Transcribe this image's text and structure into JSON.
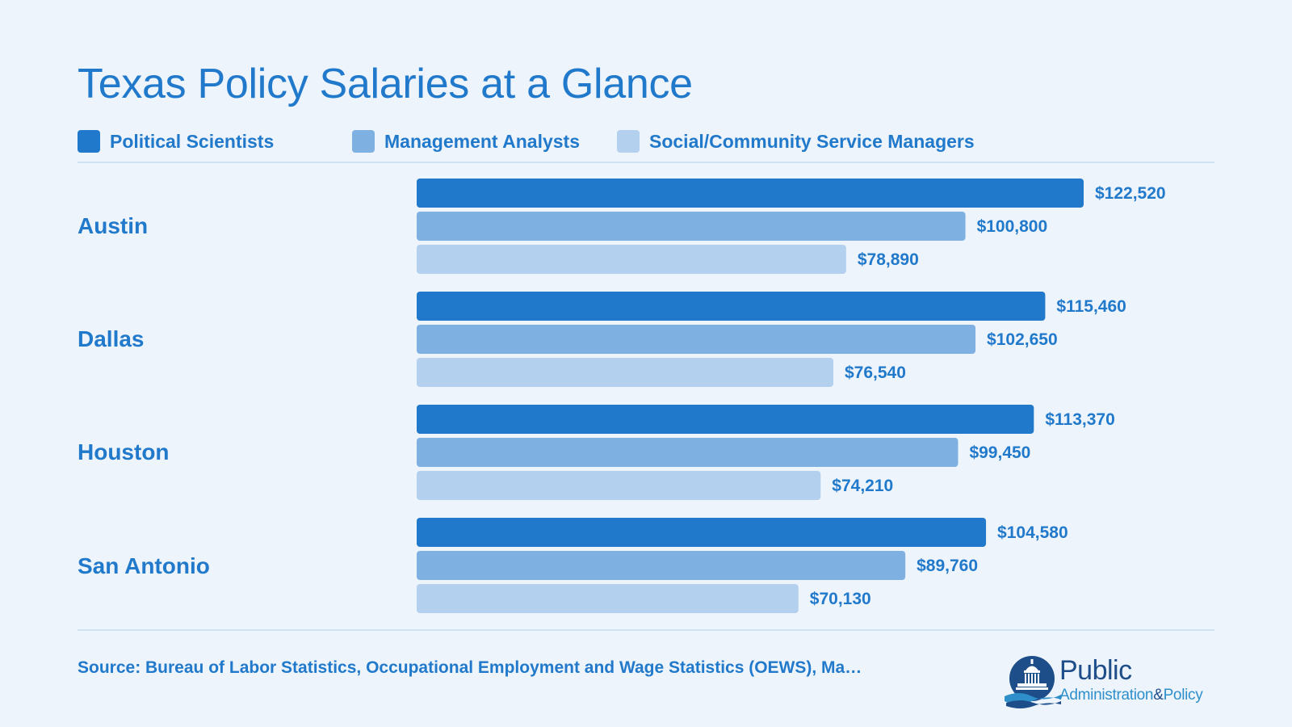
{
  "title": "Texas Policy Salaries at a Glance",
  "legend": [
    {
      "label": "Political Scientists",
      "color": "#2179cb"
    },
    {
      "label": "Management Analysts",
      "color": "#7eb0e2"
    },
    {
      "label": "Social/Community Service Managers",
      "color": "#b3d1ef"
    }
  ],
  "chart_data": {
    "type": "bar",
    "orientation": "horizontal",
    "title": "Texas Policy Salaries at a Glance",
    "categories": [
      "Austin",
      "Dallas",
      "Houston",
      "San Antonio"
    ],
    "series": [
      {
        "name": "Political Scientists",
        "values": [
          122520,
          115460,
          113370,
          104580
        ],
        "labels": [
          "$122,520",
          "$115,460",
          "$113,370",
          "$104,580"
        ],
        "color": "#2179cb"
      },
      {
        "name": "Management Analysts",
        "values": [
          100800,
          102650,
          99450,
          89760
        ],
        "labels": [
          "$100,800",
          "$102,650",
          "$99,450",
          "$89,760"
        ],
        "color": "#7eb0e2"
      },
      {
        "name": "Social/Community Service Managers",
        "values": [
          78890,
          76540,
          74210,
          70130
        ],
        "labels": [
          "$78,890",
          "$76,540",
          "$74,210",
          "$70,130"
        ],
        "color": "#b3d1ef"
      }
    ],
    "xlim": [
      0,
      122520
    ],
    "grid": false,
    "legend_position": "top",
    "xlabel": "",
    "ylabel": ""
  },
  "source": "Source: Bureau of Labor Statistics, Occupational Employment and Wage Statistics (OEWS), Ma…",
  "logo": {
    "word_1": "Public",
    "word_2": "Administration",
    "amp": "&",
    "word_3": "Policy"
  }
}
